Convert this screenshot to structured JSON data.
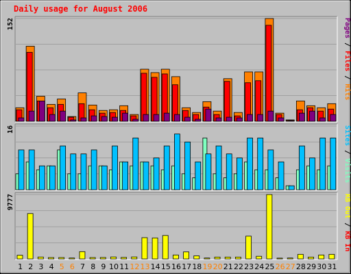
{
  "chart_data": {
    "type": "bar",
    "title": "Daily usage for August 2006",
    "x": [
      1,
      2,
      3,
      4,
      5,
      6,
      7,
      8,
      9,
      10,
      11,
      12,
      13,
      14,
      15,
      16,
      17,
      18,
      19,
      20,
      21,
      22,
      23,
      24,
      25,
      26,
      27,
      28,
      29,
      30,
      31
    ],
    "weekend_days": [
      5,
      6,
      12,
      13,
      19,
      20,
      26,
      27
    ],
    "colors": {
      "hits": "#ff8000",
      "files": "#ff0000",
      "pages": "#800080",
      "visits": "#80ffc0",
      "sites": "#00c0ff",
      "kbin": "#ff0000",
      "kbout": "#ffff00",
      "weekend_label": "#ff8000",
      "weekday_label": "#000000",
      "panel_bg": "#c0c0c0",
      "title": "#ff0000"
    },
    "panels": [
      {
        "id": "hits",
        "ymax_label": "152",
        "ymax": 152,
        "legend": [
          {
            "text": "Hits",
            "color": "#ff8000"
          },
          {
            "text": " / ",
            "color": "#000000"
          },
          {
            "text": "Files",
            "color": "#ff0000"
          },
          {
            "text": " / ",
            "color": "#000000"
          },
          {
            "text": "Pages",
            "color": "#800080"
          }
        ],
        "series": [
          {
            "key": "hits",
            "values": [
              20,
              111,
              37,
              25,
              33,
              7,
              42,
              24,
              16,
              17,
              23,
              10,
              77,
              72,
              77,
              66,
              20,
              13,
              29,
              15,
              63,
              13,
              73,
              73,
              152,
              12,
              2,
              30,
              23,
              20,
              26
            ]
          },
          {
            "key": "files",
            "values": [
              17,
              102,
              30,
              20,
              25,
              6,
              26,
              17,
              12,
              13,
              16,
              8,
              71,
              65,
              70,
              54,
              16,
              10,
              21,
              10,
              59,
              8,
              57,
              60,
              142,
              10,
              1,
              17,
              20,
              15,
              18
            ]
          },
          {
            "key": "pages",
            "values": [
              5,
              15,
              30,
              10,
              15,
              2,
              5,
              8,
              7,
              6,
              12,
              3,
              10,
              10,
              12,
              10,
              6,
              3,
              18,
              5,
              6,
              5,
              10,
              10,
              15,
              5,
              1,
              12,
              15,
              5,
              10
            ]
          }
        ]
      },
      {
        "id": "visits",
        "ymax_label": "16",
        "ymax": 16,
        "legend": [
          {
            "text": "Visits",
            "color": "#80ffc0"
          },
          {
            "text": " / ",
            "color": "#000000"
          },
          {
            "text": "Sites",
            "color": "#00c0ff"
          }
        ],
        "series": [
          {
            "key": "visits",
            "values": [
              4,
              7,
              5,
              6,
              10,
              4,
              4,
              6,
              6,
              5,
              7,
              6,
              7,
              6,
              5,
              6,
              4,
              3,
              13,
              4,
              3,
              4,
              7,
              5,
              5,
              3,
              1,
              5,
              6,
              5,
              6
            ]
          },
          {
            "key": "sites",
            "values": [
              10,
              10,
              6,
              6,
              11,
              9,
              9,
              10,
              6,
              11,
              7,
              13,
              7,
              8,
              11,
              14,
              12,
              7,
              9,
              11,
              9,
              8,
              13,
              13,
              10,
              7,
              1,
              11,
              8,
              13,
              13
            ]
          }
        ]
      },
      {
        "id": "kbytes",
        "ymax_label": "9777",
        "ymax": 9777,
        "legend": [
          {
            "text": "KB In",
            "color": "#ff0000"
          },
          {
            "text": " / ",
            "color": "#000000"
          },
          {
            "text": "KB Out",
            "color": "#ffff00"
          }
        ],
        "series": [
          {
            "key": "kbout",
            "values": [
              560,
              6890,
              290,
              210,
              210,
              140,
              1110,
              210,
              220,
              300,
              230,
              300,
              3230,
              3190,
              3560,
              600,
              1070,
              470,
              140,
              280,
              280,
              280,
              3460,
              400,
              9777,
              120,
              140,
              700,
              280,
              600,
              700
            ]
          }
        ]
      }
    ]
  }
}
